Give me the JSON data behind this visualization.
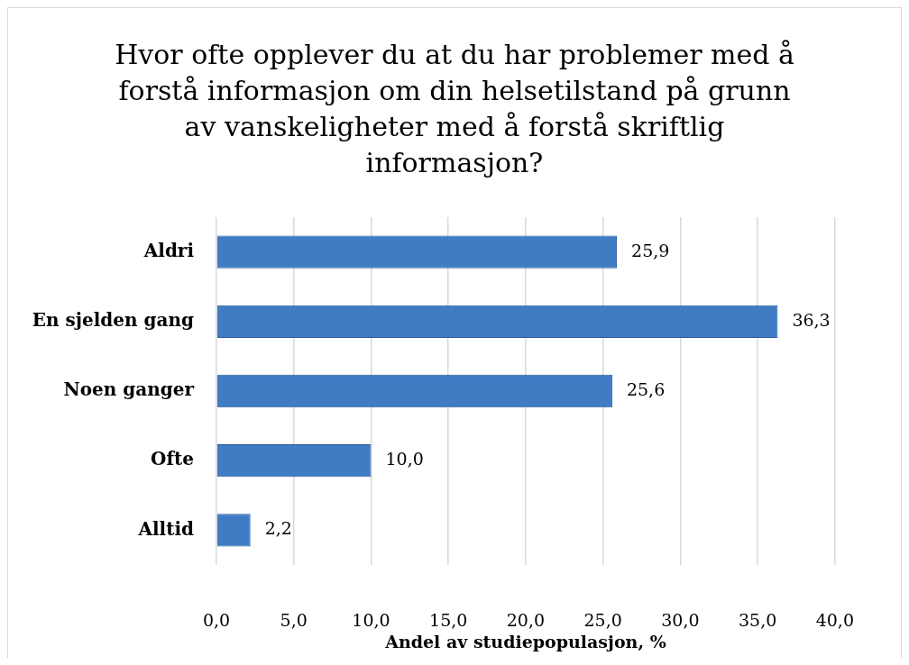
{
  "chart_data": {
    "type": "bar",
    "orientation": "horizontal",
    "title": "Hvor ofte opplever du at du har problemer med å forstå informasjon om din helsetilstand på grunn av vanskeligheter med å forstå skriftlig informasjon?",
    "xlabel": "Andel av studiepopulasjon, %",
    "categories": [
      "Aldri",
      "En sjelden gang",
      "Noen ganger",
      "Ofte",
      "Alltid"
    ],
    "values": [
      25.9,
      36.3,
      25.6,
      10.0,
      2.2
    ],
    "value_labels": [
      "25,9",
      "36,3",
      "25,6",
      "10,0",
      "2,2"
    ],
    "color": "#3f7cc4",
    "xlim": [
      0,
      40
    ],
    "xticks": [
      {
        "value": 0,
        "label": "0,0"
      },
      {
        "value": 5,
        "label": "5,0"
      },
      {
        "value": 10,
        "label": "10,0"
      },
      {
        "value": 15,
        "label": "15,0"
      },
      {
        "value": 20,
        "label": "20,0"
      },
      {
        "value": 25,
        "label": "25,0"
      },
      {
        "value": 30,
        "label": "30,0"
      },
      {
        "value": 35,
        "label": "35,0"
      },
      {
        "value": 40,
        "label": "40,0"
      }
    ],
    "grid": "x"
  }
}
